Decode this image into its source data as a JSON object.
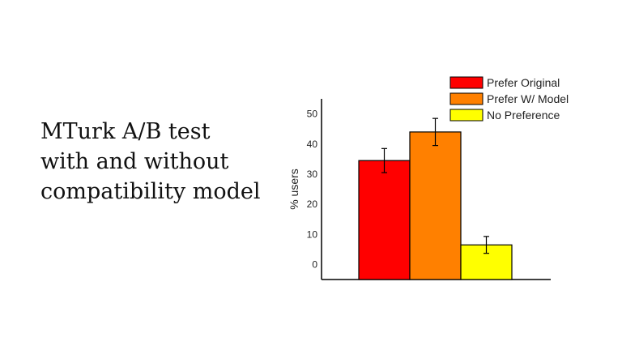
{
  "slide": {
    "text_lines": [
      "MTurk A/B test",
      "with and without",
      "compatibility model"
    ]
  },
  "chart_data": {
    "type": "bar",
    "title": "",
    "xlabel": "",
    "ylabel": "% users",
    "ylim": [
      -5,
      55
    ],
    "yticks": [
      0,
      10,
      20,
      30,
      40,
      50
    ],
    "grid": false,
    "legend_position": "top-right",
    "series": [
      {
        "name": "Prefer Original",
        "value": 34.5,
        "error": 4,
        "color": "#ff0000"
      },
      {
        "name": "Prefer W/ Model",
        "value": 44,
        "error": 4.5,
        "color": "#ff8000"
      },
      {
        "name": "No Preference",
        "value": 6.5,
        "error": 2.8,
        "color": "#ffff00"
      }
    ]
  }
}
